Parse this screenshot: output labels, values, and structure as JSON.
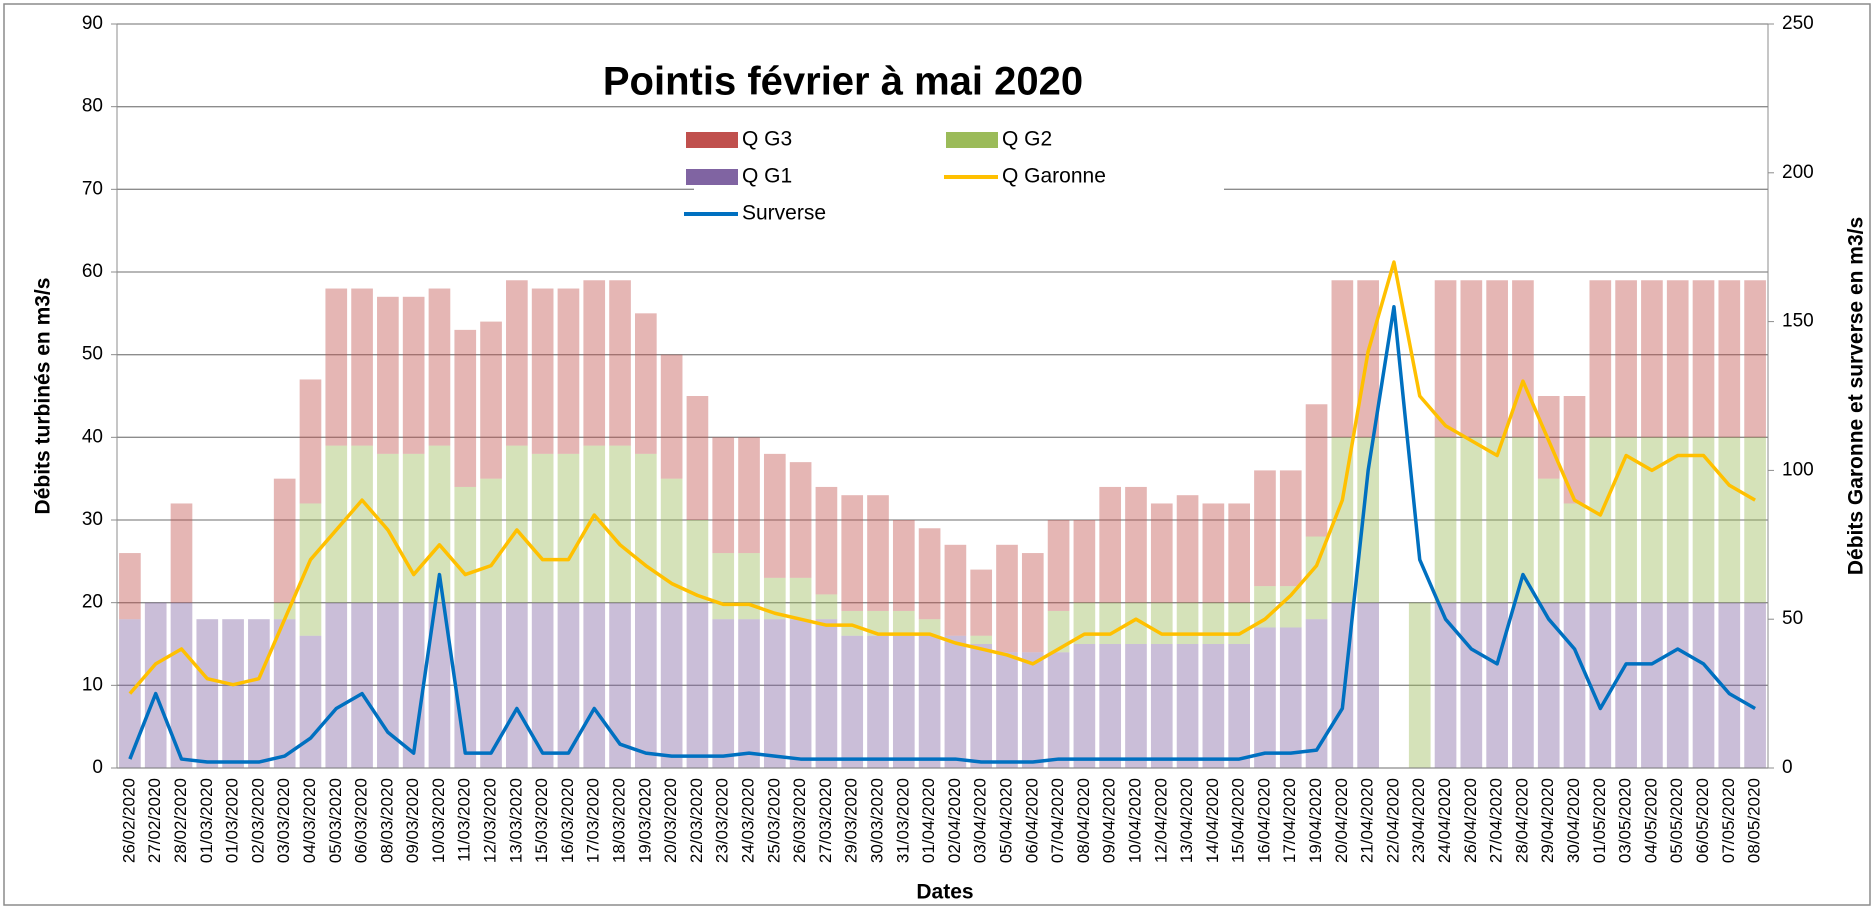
{
  "chart_data": {
    "type": "bar",
    "title": "Pointis février à mai 2020",
    "x_label": "Dates",
    "y_label": "Débits turbinés en m3/s",
    "y2_label": "Débits Garonne et surverse en m3/s",
    "categories": [
      "26/02/2020",
      "27/02/2020",
      "28/02/2020",
      "01/03/2020",
      "01/03/2020",
      "02/03/2020",
      "03/03/2020",
      "04/03/2020",
      "05/03/2020",
      "06/03/2020",
      "08/03/2020",
      "09/03/2020",
      "10/03/2020",
      "11/03/2020",
      "12/03/2020",
      "13/03/2020",
      "15/03/2020",
      "16/03/2020",
      "17/03/2020",
      "18/03/2020",
      "19/03/2020",
      "20/03/2020",
      "22/03/2020",
      "23/03/2020",
      "24/03/2020",
      "25/03/2020",
      "26/03/2020",
      "27/03/2020",
      "29/03/2020",
      "30/03/2020",
      "31/03/2020",
      "01/04/2020",
      "02/04/2020",
      "03/04/2020",
      "05/04/2020",
      "06/04/2020",
      "07/04/2020",
      "08/04/2020",
      "09/04/2020",
      "10/04/2020",
      "12/04/2020",
      "13/04/2020",
      "14/04/2020",
      "15/04/2020",
      "16/04/2020",
      "17/04/2020",
      "19/04/2020",
      "20/04/2020",
      "21/04/2020",
      "22/04/2020",
      "23/04/2020",
      "24/04/2020",
      "26/04/2020",
      "27/04/2020",
      "28/04/2020",
      "29/04/2020",
      "30/04/2020",
      "01/05/2020",
      "03/05/2020",
      "04/05/2020",
      "05/05/2020",
      "06/05/2020",
      "07/05/2020",
      "08/05/2020"
    ],
    "series": [
      {
        "name": "Q G1",
        "color": "#8064a2",
        "stack": true,
        "values": [
          18,
          20,
          20,
          18,
          18,
          18,
          18,
          16,
          20,
          20,
          20,
          20,
          20,
          20,
          20,
          20,
          20,
          20,
          20,
          20,
          20,
          20,
          20,
          18,
          18,
          18,
          18,
          18,
          16,
          16,
          16,
          16,
          16,
          15,
          14,
          14,
          14,
          15,
          15,
          15,
          15,
          15,
          15,
          15,
          17,
          17,
          18,
          20,
          20,
          0,
          0,
          20,
          20,
          20,
          20,
          20,
          20,
          20,
          20,
          20,
          20,
          20,
          20,
          20
        ]
      },
      {
        "name": "Q G2",
        "color": "#9bbb59",
        "stack": true,
        "values": [
          0,
          0,
          0,
          0,
          0,
          0,
          2,
          16,
          19,
          19,
          18,
          18,
          19,
          14,
          15,
          19,
          18,
          18,
          19,
          19,
          18,
          15,
          10,
          8,
          8,
          5,
          5,
          3,
          3,
          3,
          3,
          2,
          0,
          1,
          0,
          0,
          5,
          5,
          5,
          5,
          5,
          5,
          5,
          5,
          5,
          5,
          10,
          20,
          20,
          0,
          20,
          20,
          20,
          20,
          20,
          15,
          12,
          20,
          20,
          20,
          20,
          20,
          20,
          20
        ]
      },
      {
        "name": "Q G3",
        "color": "#c0504d",
        "stack": true,
        "values": [
          8,
          0,
          12,
          0,
          0,
          0,
          15,
          15,
          19,
          19,
          19,
          19,
          19,
          19,
          19,
          20,
          20,
          20,
          20,
          20,
          17,
          15,
          15,
          14,
          14,
          15,
          14,
          13,
          14,
          14,
          11,
          11,
          11,
          8,
          13,
          12,
          11,
          10,
          14,
          14,
          12,
          13,
          12,
          12,
          14,
          14,
          16,
          19,
          19,
          0,
          0,
          19,
          19,
          19,
          19,
          10,
          13,
          19,
          19,
          19,
          19,
          19,
          19,
          19
        ]
      },
      {
        "name": "Q Garonne",
        "color": "#ffc000",
        "type": "line",
        "axis": "y2",
        "values": [
          25,
          35,
          40,
          30,
          28,
          30,
          50,
          70,
          80,
          90,
          80,
          65,
          75,
          65,
          68,
          80,
          70,
          70,
          85,
          75,
          68,
          62,
          58,
          55,
          55,
          52,
          50,
          48,
          48,
          45,
          45,
          45,
          42,
          40,
          38,
          35,
          40,
          45,
          45,
          50,
          45,
          45,
          45,
          45,
          50,
          58,
          68,
          90,
          140,
          170,
          125,
          115,
          110,
          105,
          130,
          110,
          90,
          85,
          105,
          100,
          105,
          105,
          95,
          90
        ]
      },
      {
        "name": "Surverse",
        "color": "#0070c0",
        "type": "line",
        "axis": "y2",
        "values": [
          3,
          25,
          3,
          2,
          2,
          2,
          4,
          10,
          20,
          25,
          12,
          5,
          65,
          5,
          5,
          20,
          5,
          5,
          20,
          8,
          5,
          4,
          4,
          4,
          5,
          4,
          3,
          3,
          3,
          3,
          3,
          3,
          3,
          2,
          2,
          2,
          3,
          3,
          3,
          3,
          3,
          3,
          3,
          3,
          5,
          5,
          6,
          20,
          100,
          155,
          70,
          50,
          40,
          35,
          65,
          50,
          40,
          20,
          35,
          35,
          40,
          35,
          25,
          20
        ]
      }
    ],
    "ylim": [
      0,
      90
    ],
    "yticks": [
      0,
      10,
      20,
      30,
      40,
      50,
      60,
      70,
      80,
      90
    ],
    "y2lim": [
      0,
      250
    ],
    "y2ticks": [
      0,
      50,
      100,
      150,
      200,
      250
    ],
    "grid": true
  }
}
